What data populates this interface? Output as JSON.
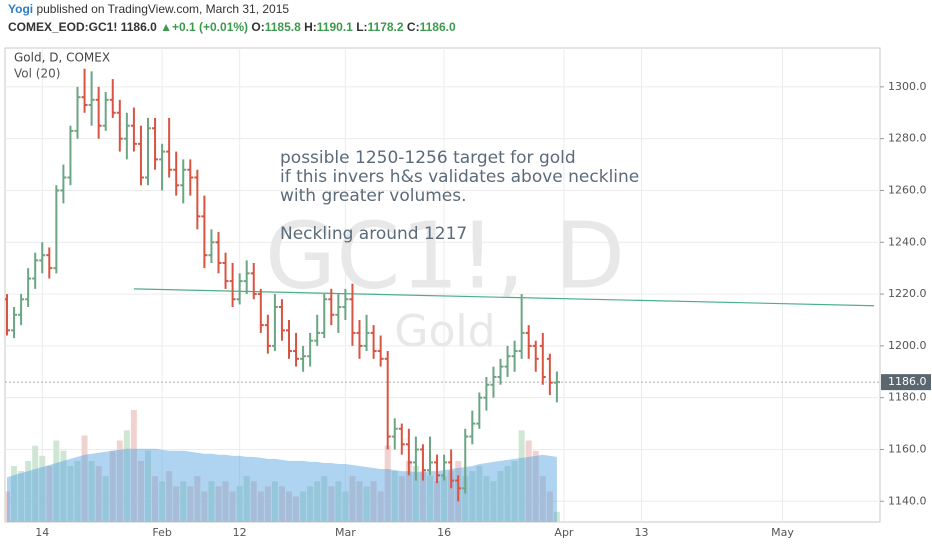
{
  "header": {
    "author": "Yogi",
    "published": "published on TradingView.com, March 31, 2015",
    "symbol": "COMEX_EOD:GC1!",
    "last": "1186.0",
    "change": "+0.1 (+0.01%)",
    "quote": [
      {
        "label": "O:",
        "value": "1185.8"
      },
      {
        "label": "H:",
        "value": "1190.1"
      },
      {
        "label": "L:",
        "value": "1178.2"
      },
      {
        "label": "C:",
        "value": "1186.0"
      }
    ]
  },
  "chart_data": {
    "type": "ohlc",
    "watermark": {
      "symbol": "GC1!, D",
      "description": "Gold"
    },
    "annotations": [
      "possible 1250-1256 target for gold",
      "if this invers h&s validates above neckline",
      "with greater volumes.",
      "Neckling around 1217"
    ],
    "categories": [
      null,
      null,
      null,
      null,
      null,
      "14",
      null,
      null,
      null,
      null,
      null,
      null,
      null,
      null,
      null,
      null,
      null,
      null,
      null,
      null,
      null,
      null,
      "Feb",
      null,
      null,
      null,
      null,
      null,
      null,
      null,
      null,
      null,
      null,
      "12",
      null,
      null,
      null,
      null,
      null,
      null,
      null,
      null,
      null,
      null,
      null,
      null,
      null,
      null,
      "Mar",
      null,
      null,
      null,
      null,
      null,
      null,
      null,
      null,
      null,
      null,
      null,
      null,
      null,
      "16",
      null,
      null,
      null,
      null,
      null,
      null,
      null,
      null,
      null,
      null,
      null,
      null,
      null,
      null,
      null,
      null,
      "Apr",
      null,
      null,
      null,
      null,
      null,
      null,
      null,
      null,
      null,
      null,
      "13",
      null,
      null,
      null,
      null,
      null,
      null,
      null,
      null,
      null,
      null,
      null,
      null,
      null,
      null,
      null,
      null,
      null,
      null,
      null,
      "May",
      null,
      null,
      null,
      null,
      null,
      null,
      null,
      null,
      null,
      null,
      null,
      null,
      null
    ],
    "series": [
      {
        "name": "Gold, D, COMEX",
        "up_color": "#6ba583",
        "down_color": "#d75442",
        "values": [
          [
            1218,
            1220,
            1204,
            1206
          ],
          [
            1206,
            1215,
            1203,
            1212
          ],
          [
            1212,
            1220,
            1208,
            1218
          ],
          [
            1218,
            1230,
            1215,
            1226
          ],
          [
            1226,
            1236,
            1222,
            1233
          ],
          [
            1233,
            1240,
            1228,
            1235
          ],
          [
            1235,
            1238,
            1226,
            1230
          ],
          [
            1230,
            1262,
            1228,
            1260
          ],
          [
            1260,
            1270,
            1255,
            1265
          ],
          [
            1265,
            1285,
            1262,
            1283
          ],
          [
            1283,
            1300,
            1280,
            1296
          ],
          [
            1296,
            1307,
            1290,
            1293
          ],
          [
            1293,
            1306,
            1285,
            1295
          ],
          [
            1295,
            1300,
            1280,
            1285
          ],
          [
            1285,
            1298,
            1283,
            1295
          ],
          [
            1295,
            1303,
            1288,
            1290
          ],
          [
            1290,
            1295,
            1275,
            1280
          ],
          [
            1280,
            1290,
            1272,
            1285
          ],
          [
            1285,
            1292,
            1275,
            1278
          ],
          [
            1278,
            1285,
            1262,
            1265
          ],
          [
            1265,
            1288,
            1262,
            1284
          ],
          [
            1284,
            1288,
            1268,
            1272
          ],
          [
            1272,
            1278,
            1260,
            1275
          ],
          [
            1275,
            1288,
            1265,
            1268
          ],
          [
            1268,
            1275,
            1258,
            1262
          ],
          [
            1262,
            1272,
            1255,
            1268
          ],
          [
            1268,
            1272,
            1258,
            1265
          ],
          [
            1265,
            1268,
            1245,
            1250
          ],
          [
            1250,
            1258,
            1230,
            1235
          ],
          [
            1235,
            1245,
            1232,
            1240
          ],
          [
            1240,
            1244,
            1228,
            1232
          ],
          [
            1232,
            1236,
            1222,
            1225
          ],
          [
            1225,
            1232,
            1215,
            1218
          ],
          [
            1218,
            1228,
            1216,
            1225
          ],
          [
            1225,
            1233,
            1220,
            1228
          ],
          [
            1228,
            1232,
            1218,
            1220
          ],
          [
            1220,
            1222,
            1205,
            1208
          ],
          [
            1208,
            1212,
            1197,
            1200
          ],
          [
            1200,
            1220,
            1198,
            1215
          ],
          [
            1215,
            1218,
            1202,
            1206
          ],
          [
            1206,
            1210,
            1195,
            1198
          ],
          [
            1198,
            1205,
            1192,
            1195
          ],
          [
            1195,
            1200,
            1190,
            1196
          ],
          [
            1196,
            1205,
            1192,
            1202
          ],
          [
            1202,
            1212,
            1200,
            1205
          ],
          [
            1205,
            1220,
            1203,
            1218
          ],
          [
            1218,
            1222,
            1208,
            1212
          ],
          [
            1212,
            1220,
            1205,
            1215
          ],
          [
            1215,
            1222,
            1210,
            1218
          ],
          [
            1218,
            1224,
            1200,
            1205
          ],
          [
            1205,
            1210,
            1195,
            1200
          ],
          [
            1200,
            1212,
            1198,
            1205
          ],
          [
            1205,
            1208,
            1195,
            1198
          ],
          [
            1198,
            1204,
            1192,
            1195
          ],
          [
            1195,
            1198,
            1160,
            1165
          ],
          [
            1165,
            1172,
            1160,
            1168
          ],
          [
            1168,
            1170,
            1158,
            1162
          ],
          [
            1162,
            1168,
            1150,
            1155
          ],
          [
            1155,
            1165,
            1148,
            1160
          ],
          [
            1160,
            1162,
            1148,
            1152
          ],
          [
            1152,
            1165,
            1150,
            1155
          ],
          [
            1155,
            1158,
            1147,
            1150
          ],
          [
            1150,
            1158,
            1148,
            1155
          ],
          [
            1155,
            1160,
            1145,
            1148
          ],
          [
            1148,
            1150,
            1140,
            1145
          ],
          [
            1145,
            1168,
            1143,
            1165
          ],
          [
            1165,
            1175,
            1162,
            1170
          ],
          [
            1170,
            1182,
            1168,
            1180
          ],
          [
            1180,
            1188,
            1175,
            1185
          ],
          [
            1185,
            1192,
            1180,
            1188
          ],
          [
            1188,
            1195,
            1185,
            1192
          ],
          [
            1192,
            1200,
            1188,
            1196
          ],
          [
            1196,
            1202,
            1190,
            1198
          ],
          [
            1198,
            1220,
            1195,
            1205
          ],
          [
            1205,
            1208,
            1195,
            1200
          ],
          [
            1200,
            1202,
            1190,
            1195
          ],
          [
            1200,
            1205,
            1185,
            1188
          ],
          [
            1195,
            1197,
            1181,
            1185.8
          ],
          [
            1185.8,
            1190.1,
            1178.2,
            1186.0
          ],
          null,
          null,
          null,
          null,
          null,
          null,
          null,
          null,
          null,
          null,
          null,
          null,
          null,
          null,
          null,
          null,
          null,
          null,
          null,
          null,
          null,
          null,
          null,
          null,
          null,
          null,
          null,
          null,
          null,
          null,
          null,
          null,
          null,
          null,
          null,
          null,
          null,
          null,
          null,
          null,
          null,
          null,
          null,
          null,
          null
        ]
      }
    ],
    "volume": {
      "name": "Vol (20)",
      "up_color": "#cfe6d4",
      "down_color": "#f0d3d0",
      "ma_color": "#4d9fe0",
      "values": [
        30,
        55,
        50,
        60,
        75,
        65,
        55,
        80,
        70,
        55,
        60,
        85,
        60,
        55,
        45,
        70,
        80,
        90,
        110,
        60,
        70,
        45,
        40,
        50,
        35,
        40,
        35,
        45,
        30,
        40,
        35,
        40,
        30,
        35,
        45,
        40,
        30,
        35,
        40,
        35,
        30,
        25,
        30,
        35,
        40,
        45,
        35,
        40,
        30,
        45,
        40,
        35,
        40,
        30,
        75,
        50,
        45,
        60,
        55,
        50,
        45,
        40,
        45,
        50,
        60,
        45,
        50,
        55,
        45,
        40,
        50,
        55,
        60,
        90,
        80,
        70,
        45,
        30,
        10,
        null,
        null,
        null,
        null,
        null,
        null,
        null,
        null,
        null,
        null,
        null,
        null,
        null,
        null,
        null,
        null,
        null,
        null,
        null,
        null,
        null,
        null,
        null,
        null,
        null,
        null,
        null,
        null,
        null,
        null,
        null,
        null,
        null,
        null,
        null,
        null,
        null,
        null,
        null,
        null,
        null,
        null,
        null,
        null,
        null
      ],
      "ma": [
        44,
        46,
        48,
        50,
        52,
        54,
        56,
        58,
        60,
        62,
        64,
        66,
        67,
        68,
        69,
        70,
        71,
        72,
        72,
        72,
        72,
        72,
        71,
        70,
        70,
        70,
        69,
        68,
        67,
        67,
        66,
        66,
        65,
        65,
        64,
        64,
        63,
        62,
        62,
        61,
        60,
        60,
        60,
        59,
        59,
        58,
        58,
        57,
        57,
        56,
        55,
        54,
        53,
        52,
        52,
        51,
        50,
        50,
        49,
        49,
        50,
        50,
        51,
        52,
        53,
        54,
        55,
        57,
        58,
        59,
        60,
        61,
        62,
        63,
        64,
        65,
        66,
        65,
        64,
        null,
        null,
        null,
        null,
        null,
        null,
        null,
        null,
        null,
        null,
        null,
        null,
        null,
        null,
        null,
        null,
        null,
        null,
        null,
        null,
        null,
        null,
        null,
        null,
        null,
        null,
        null,
        null,
        null,
        null,
        null,
        null,
        null,
        null,
        null,
        null,
        null,
        null,
        null,
        null,
        null,
        null,
        null,
        null,
        null
      ]
    },
    "neckline": {
      "x": [
        18,
        123
      ],
      "y": [
        1222,
        1215.5
      ],
      "color": "#4caf8a"
    },
    "last_price": {
      "value": 1186,
      "label": "1186.0"
    },
    "ylim": [
      1132,
      1315
    ],
    "yticks": [
      {
        "value": 1140,
        "label": "1140.0"
      },
      {
        "value": 1160,
        "label": "1160.0"
      },
      {
        "value": 1180,
        "label": "1180.0"
      },
      {
        "value": 1200,
        "label": "1200.0"
      },
      {
        "value": 1220,
        "label": "1220.0"
      },
      {
        "value": 1240,
        "label": "1240.0"
      },
      {
        "value": 1260,
        "label": "1260.0"
      },
      {
        "value": 1280,
        "label": "1280.0"
      },
      {
        "value": 1300,
        "label": "1300.0"
      }
    ],
    "grid": true
  }
}
